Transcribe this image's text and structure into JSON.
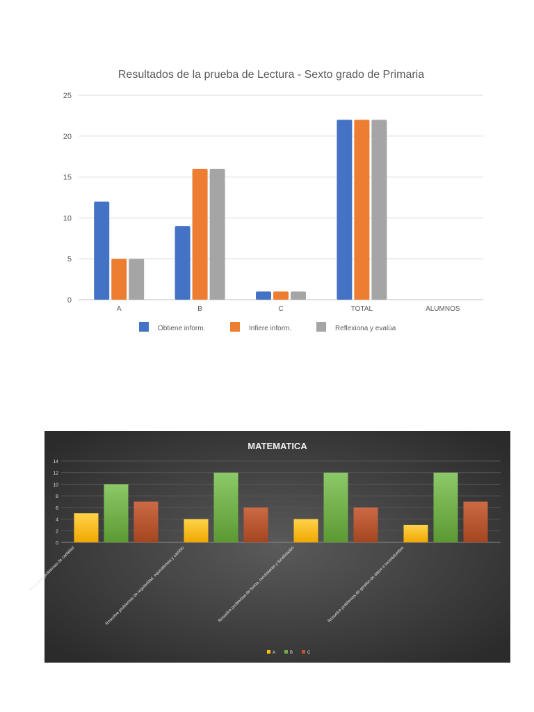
{
  "chart_data": [
    {
      "type": "bar",
      "title": "Resultados de la prueba de Lectura - Sexto grado de Primaria",
      "categories": [
        "A",
        "B",
        "C",
        "TOTAL",
        "ALUMNOS"
      ],
      "series": [
        {
          "name": "Obtiene inform.",
          "color": "#4472c4",
          "values": [
            12,
            9,
            1,
            22,
            null
          ]
        },
        {
          "name": "Infiere inform.",
          "color": "#ed7d31",
          "values": [
            5,
            16,
            1,
            22,
            null
          ]
        },
        {
          "name": "Reflexiona y evalúa",
          "color": "#a5a5a5",
          "values": [
            5,
            16,
            1,
            22,
            null
          ]
        }
      ],
      "ylim": [
        0,
        25
      ],
      "yticks": [
        0,
        5,
        10,
        15,
        20,
        25
      ],
      "grid": true,
      "legend": "bottom"
    },
    {
      "type": "bar",
      "title": "MATEMATICA",
      "categories": [
        "Resuelve problemas de cantidad",
        "Resuelve problemas de regularidad, equivalencia y cambio",
        "Resuelve problemas de forma, movimiento y localización",
        "Resuelve problemas de gestión de datos e incertidumbre"
      ],
      "series": [
        {
          "name": "A",
          "color": "#ffc000",
          "values": [
            5,
            4,
            4,
            3
          ]
        },
        {
          "name": "B",
          "color": "#70ad47",
          "values": [
            10,
            12,
            12,
            12
          ]
        },
        {
          "name": "C",
          "color": "#c0562a",
          "values": [
            7,
            6,
            6,
            7
          ]
        }
      ],
      "ylim": [
        0,
        14
      ],
      "yticks": [
        0,
        2,
        4,
        6,
        8,
        10,
        12,
        14
      ],
      "grid": true,
      "legend": "bottom",
      "background": "#3a3a3a"
    }
  ]
}
